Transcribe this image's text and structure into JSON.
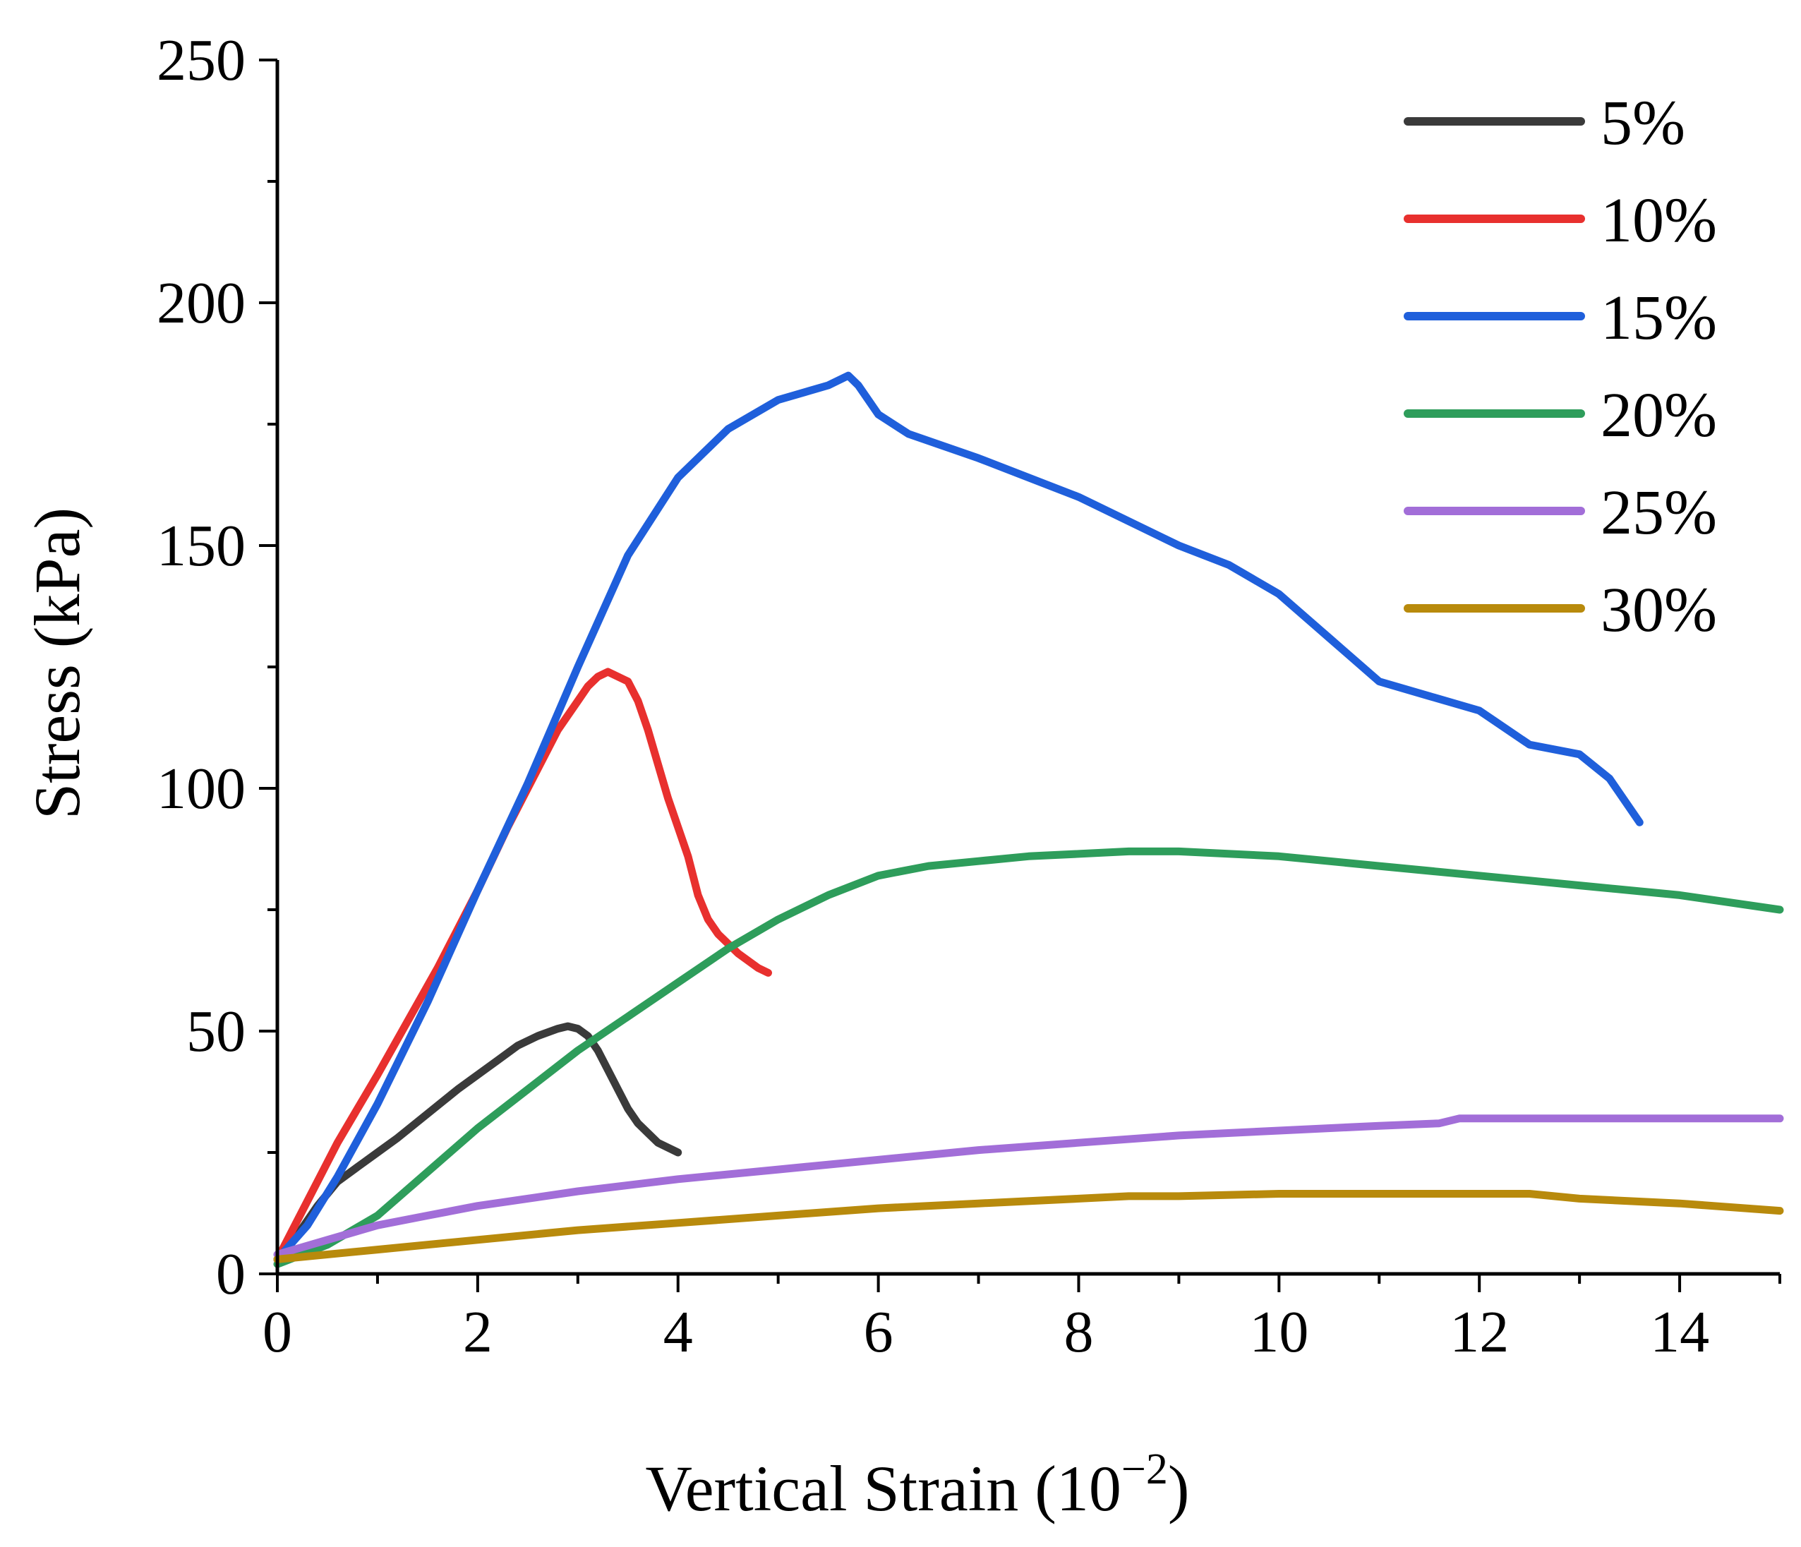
{
  "chart_data": {
    "type": "line",
    "title": "",
    "xlabel": "Vertical Strain (10",
    "xlabel_exponent": "−2",
    "xlabel_close": ")",
    "ylabel": "Stress (kPa)",
    "xlim": [
      0,
      15
    ],
    "ylim": [
      0,
      250
    ],
    "xticks": [
      0,
      2,
      4,
      6,
      8,
      10,
      12,
      14
    ],
    "yticks": [
      0,
      50,
      100,
      150,
      200,
      250
    ],
    "grid": false,
    "legend_position": "top-right",
    "series": [
      {
        "name": "5%",
        "color": "#3a3a3a",
        "x": [
          0,
          0.2,
          0.4,
          0.6,
          0.8,
          1.0,
          1.2,
          1.5,
          1.8,
          2.0,
          2.2,
          2.4,
          2.6,
          2.8,
          2.9,
          3.0,
          3.1,
          3.2,
          3.3,
          3.4,
          3.5,
          3.6,
          3.7,
          3.8,
          4.0
        ],
        "y": [
          3,
          8,
          14,
          19,
          22,
          25,
          28,
          33,
          38,
          41,
          44,
          47,
          49,
          50.5,
          51,
          50.5,
          49,
          46,
          42,
          38,
          34,
          31,
          29,
          27,
          25
        ]
      },
      {
        "name": "10%",
        "color": "#e8302e",
        "x": [
          0,
          0.2,
          0.4,
          0.6,
          0.8,
          1.0,
          1.3,
          1.6,
          2.0,
          2.3,
          2.6,
          2.8,
          3.0,
          3.1,
          3.2,
          3.3,
          3.5,
          3.6,
          3.7,
          3.8,
          3.9,
          4.0,
          4.1,
          4.2,
          4.3,
          4.4,
          4.6,
          4.8,
          4.9
        ],
        "y": [
          3,
          11,
          19,
          27,
          34,
          41,
          52,
          63,
          79,
          92,
          104,
          112,
          118,
          121,
          123,
          124,
          122,
          118,
          112,
          105,
          98,
          92,
          86,
          78,
          73,
          70,
          66,
          63,
          62
        ]
      },
      {
        "name": "15%",
        "color": "#1f5fdb",
        "x": [
          0,
          0.3,
          0.6,
          1.0,
          1.5,
          2.0,
          2.5,
          3.0,
          3.5,
          4.0,
          4.5,
          5.0,
          5.5,
          5.7,
          5.8,
          6.0,
          6.3,
          7.0,
          8.0,
          9.0,
          9.5,
          10.0,
          10.5,
          11.0,
          11.5,
          12.0,
          12.5,
          13.0,
          13.3,
          13.6
        ],
        "y": [
          3,
          10,
          20,
          35,
          56,
          79,
          101,
          125,
          148,
          164,
          174,
          180,
          183,
          185,
          183,
          177,
          173,
          168,
          160,
          150,
          146,
          140,
          131,
          122,
          119,
          116,
          109,
          107,
          102,
          93
        ]
      },
      {
        "name": "20%",
        "color": "#2e9d5b",
        "x": [
          0,
          0.5,
          1.0,
          1.5,
          2.0,
          2.5,
          3.0,
          3.5,
          4.0,
          4.5,
          5.0,
          5.5,
          6.0,
          6.5,
          7.0,
          7.5,
          8.0,
          8.5,
          9.0,
          10.0,
          11.0,
          12.0,
          13.0,
          14.0,
          15.0
        ],
        "y": [
          2,
          6,
          12,
          21,
          30,
          38,
          46,
          53,
          60,
          67,
          73,
          78,
          82,
          84,
          85,
          86,
          86.5,
          87,
          87,
          86,
          84,
          82,
          80,
          78,
          75
        ]
      },
      {
        "name": "25%",
        "color": "#a26ed8",
        "x": [
          0,
          0.5,
          1.0,
          1.5,
          2.0,
          3.0,
          4.0,
          5.0,
          6.0,
          7.0,
          8.0,
          9.0,
          10.0,
          11.0,
          11.6,
          11.8,
          12.0,
          13.0,
          14.0,
          15.0
        ],
        "y": [
          4,
          7,
          10,
          12,
          14,
          17,
          19.5,
          21.5,
          23.5,
          25.5,
          27,
          28.5,
          29.5,
          30.5,
          31,
          32,
          32,
          32,
          32,
          32
        ]
      },
      {
        "name": "30%",
        "color": "#b88a0c",
        "x": [
          0,
          1.0,
          2.0,
          3.0,
          4.0,
          5.0,
          6.0,
          7.0,
          8.0,
          8.5,
          9.0,
          10.0,
          11.0,
          12.0,
          12.5,
          13.0,
          14.0,
          15.0
        ],
        "y": [
          3,
          5,
          7,
          9,
          10.5,
          12,
          13.5,
          14.5,
          15.5,
          16,
          16,
          16.5,
          16.5,
          16.5,
          16.5,
          15.5,
          14.5,
          13
        ]
      }
    ]
  }
}
